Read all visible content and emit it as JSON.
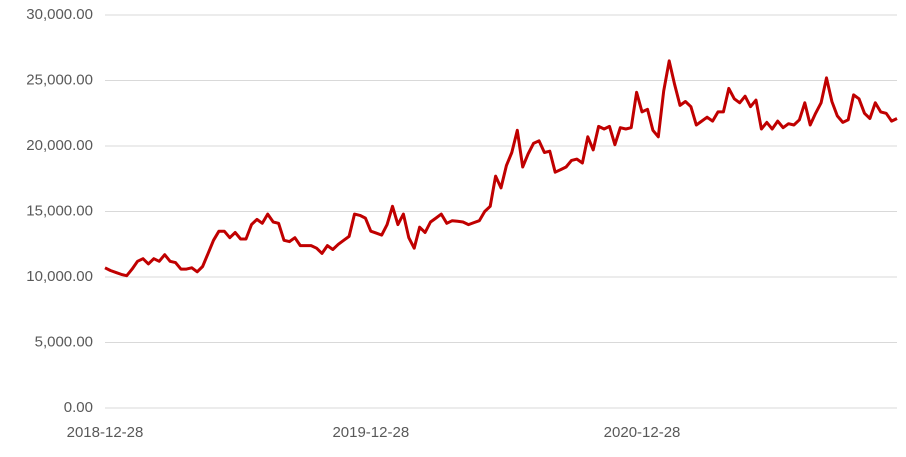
{
  "chart_data": {
    "type": "line",
    "categories": [
      "2018-12-28",
      null,
      null,
      null,
      null,
      null,
      null,
      null,
      null,
      null,
      null,
      null,
      null,
      null,
      null,
      null,
      null,
      null,
      null,
      null,
      null,
      null,
      null,
      null,
      null,
      null,
      null,
      null,
      null,
      null,
      null,
      null,
      null,
      null,
      null,
      null,
      null,
      null,
      null,
      null,
      null,
      null,
      null,
      null,
      null,
      null,
      null,
      null,
      null,
      "2019-12-28",
      null,
      null,
      null,
      null,
      null,
      null,
      null,
      null,
      null,
      null,
      null,
      null,
      null,
      null,
      null,
      null,
      null,
      null,
      null,
      null,
      null,
      null,
      null,
      null,
      null,
      null,
      null,
      null,
      null,
      null,
      null,
      null,
      null,
      null,
      null,
      null,
      null,
      null,
      null,
      null,
      null,
      null,
      null,
      null,
      null,
      null,
      null,
      null,
      null,
      "2020-12-28",
      null,
      null,
      null,
      null,
      null,
      null,
      null,
      null,
      null,
      null,
      null,
      null,
      null,
      null,
      null,
      null,
      null,
      null,
      null,
      null,
      null,
      null,
      null,
      null,
      null,
      null,
      null,
      null,
      null,
      null,
      null,
      null,
      null,
      null,
      null,
      null,
      null,
      null,
      null,
      null,
      null,
      null,
      null,
      null,
      null,
      null,
      null
    ],
    "series": [
      {
        "color": "#c00000",
        "values": [
          10700,
          10500,
          10350,
          10200,
          10100,
          10600,
          11200,
          11400,
          11000,
          11400,
          11200,
          11700,
          11200,
          11100,
          10600,
          10600,
          10700,
          10400,
          10800,
          11800,
          12800,
          13500,
          13500,
          13000,
          13400,
          12900,
          12900,
          14000,
          14400,
          14100,
          14800,
          14200,
          14100,
          12800,
          12700,
          13000,
          12400,
          12400,
          12400,
          12200,
          11800,
          12400,
          12100,
          12500,
          12800,
          13100,
          14800,
          14700,
          14500,
          13500,
          13350,
          13200,
          14000,
          15400,
          14000,
          14800,
          13000,
          12200,
          13800,
          13400,
          14200,
          14500,
          14800,
          14100,
          14300,
          14250,
          14200,
          14000,
          14150,
          14300,
          15000,
          15400,
          17700,
          16800,
          18500,
          19500,
          21200,
          18400,
          19400,
          20200,
          20400,
          19500,
          19600,
          18000,
          18200,
          18400,
          18900,
          19000,
          18700,
          20700,
          19700,
          21500,
          21300,
          21500,
          20100,
          21400,
          21300,
          21400,
          24100,
          22600,
          22800,
          21200,
          20700,
          24200,
          26500,
          24700,
          23100,
          23400,
          23000,
          21600,
          21900,
          22200,
          21900,
          22600,
          22600,
          24400,
          23600,
          23300,
          23800,
          23000,
          23500,
          21300,
          21800,
          21300,
          21900,
          21400,
          21700,
          21600,
          22000,
          23300,
          21600,
          22500,
          23300,
          25200,
          23400,
          22300,
          21800,
          22000,
          23900,
          23600,
          22500,
          22100,
          23300,
          22600,
          22500,
          21900,
          22100
        ]
      }
    ],
    "ylim": [
      0,
      30000
    ],
    "yticks": [
      {
        "value": 0,
        "label": "0.00"
      },
      {
        "value": 5000,
        "label": "5,000.00"
      },
      {
        "value": 10000,
        "label": "10,000.00"
      },
      {
        "value": 15000,
        "label": "15,000.00"
      },
      {
        "value": 20000,
        "label": "20,000.00"
      },
      {
        "value": 25000,
        "label": "25,000.00"
      },
      {
        "value": 30000,
        "label": "30,000.00"
      }
    ],
    "grid": true
  }
}
